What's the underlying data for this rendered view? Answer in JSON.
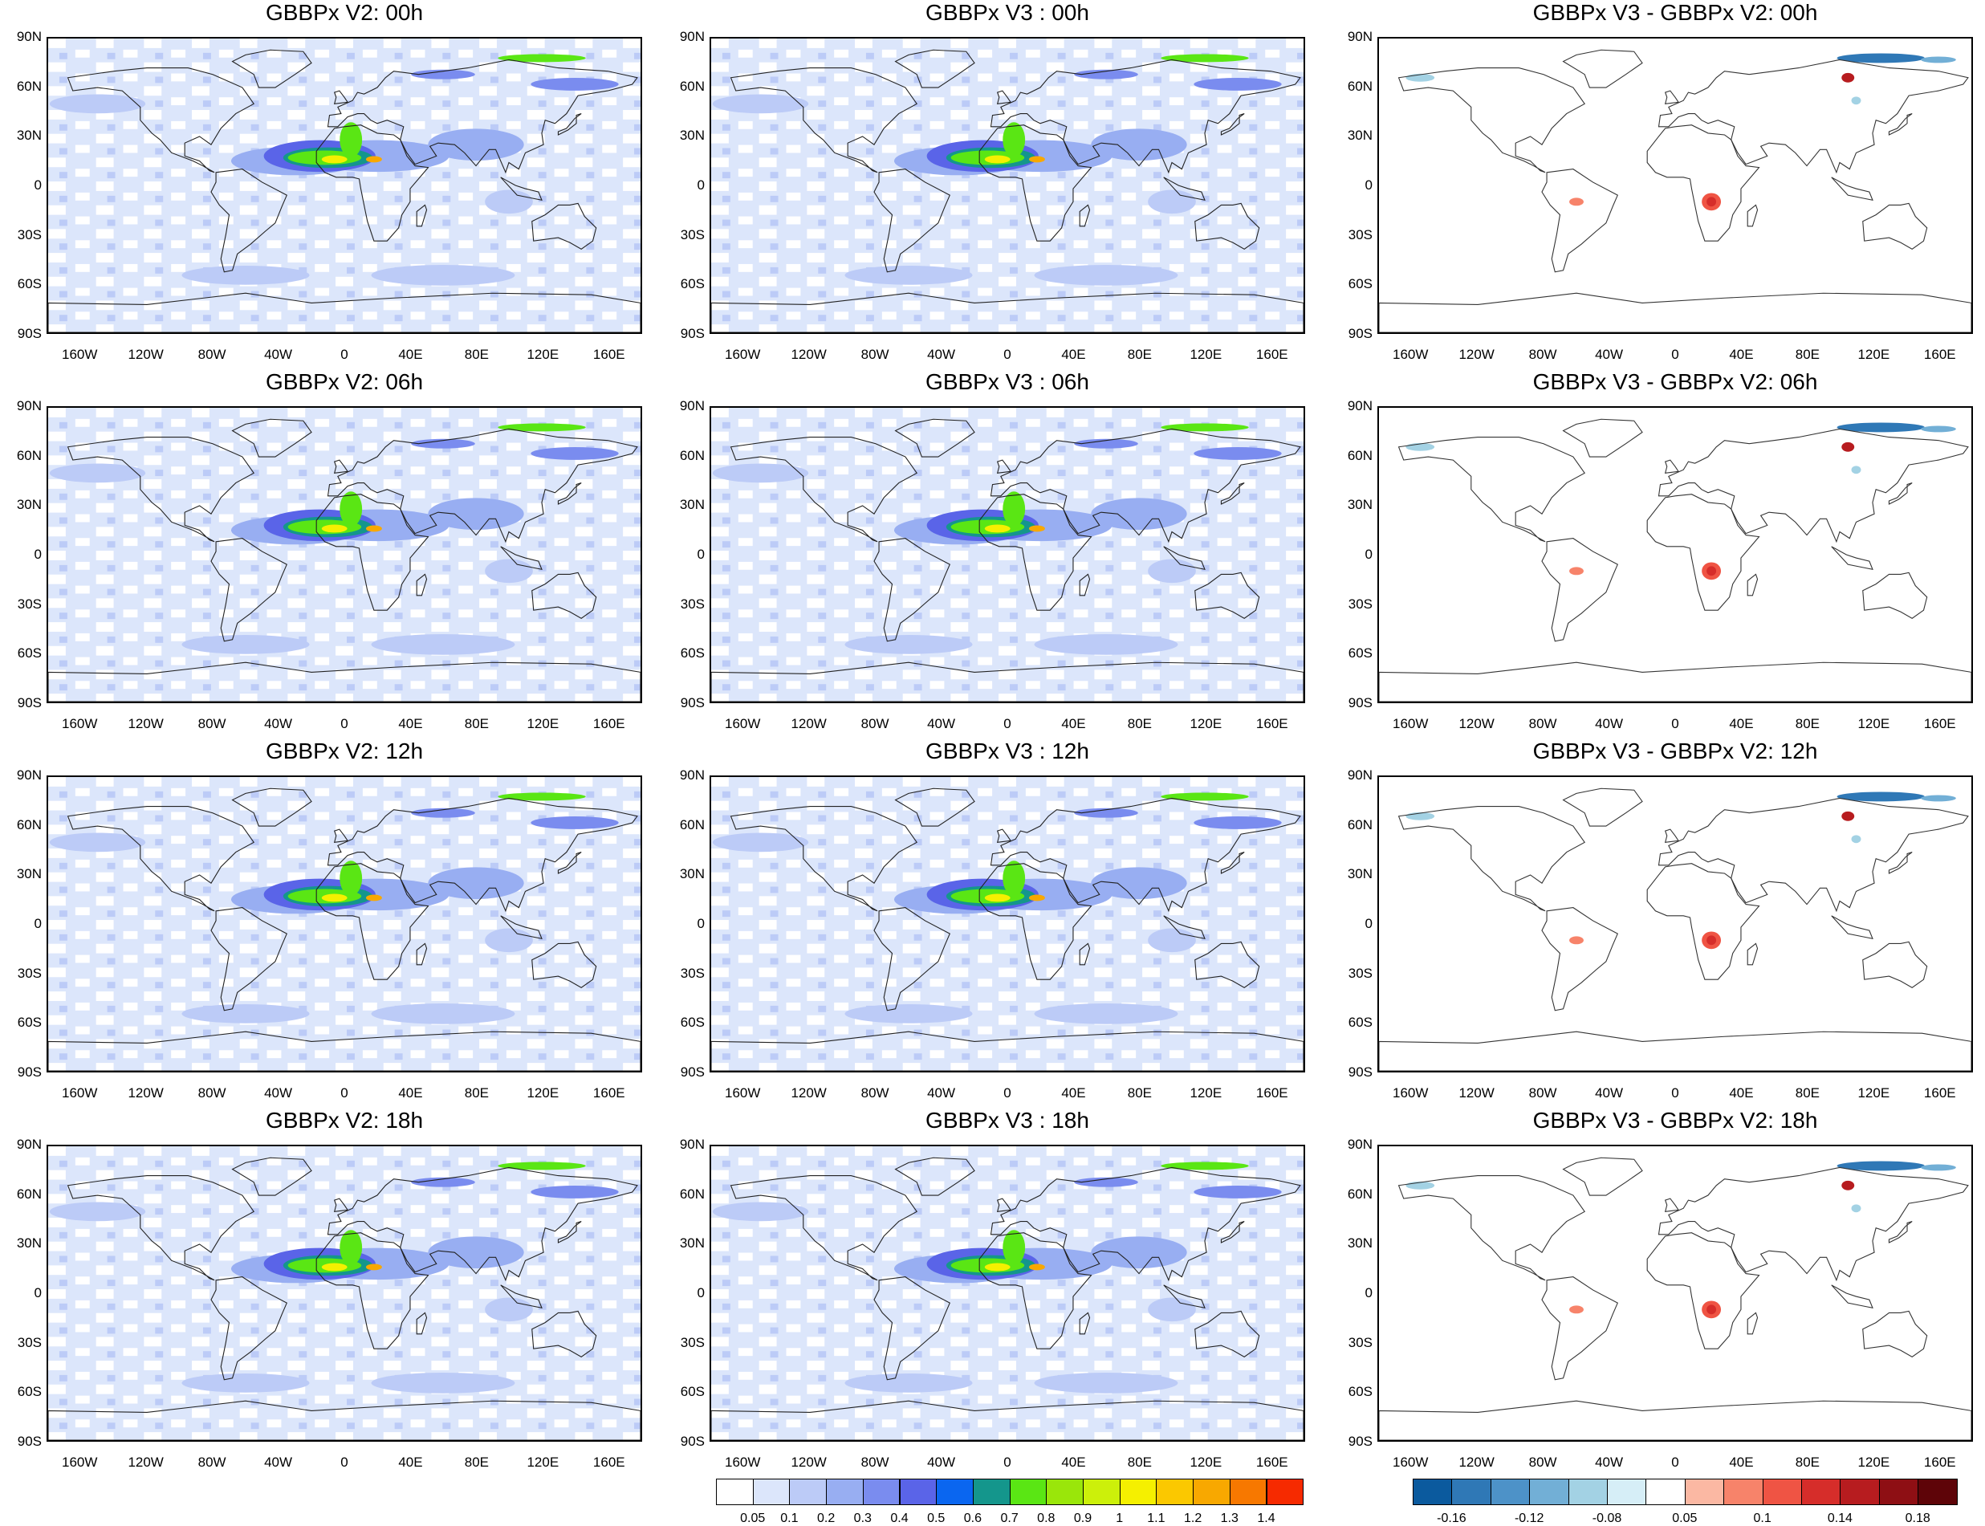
{
  "panels": [
    {
      "row": 0,
      "col": 0,
      "title": "GBBPx V2: 00h",
      "kind": "field"
    },
    {
      "row": 0,
      "col": 1,
      "title": "GBBPx V3 : 00h",
      "kind": "field"
    },
    {
      "row": 0,
      "col": 2,
      "title": "GBBPx V3 - GBBPx V2: 00h",
      "kind": "diff"
    },
    {
      "row": 1,
      "col": 0,
      "title": "GBBPx V2: 06h",
      "kind": "field"
    },
    {
      "row": 1,
      "col": 1,
      "title": "GBBPx V3 : 06h",
      "kind": "field"
    },
    {
      "row": 1,
      "col": 2,
      "title": "GBBPx V3 - GBBPx V2: 06h",
      "kind": "diff"
    },
    {
      "row": 2,
      "col": 0,
      "title": "GBBPx V2: 12h",
      "kind": "field"
    },
    {
      "row": 2,
      "col": 1,
      "title": "GBBPx V3 : 12h",
      "kind": "field"
    },
    {
      "row": 2,
      "col": 2,
      "title": "GBBPx V3 - GBBPx V2: 12h",
      "kind": "diff"
    },
    {
      "row": 3,
      "col": 0,
      "title": "GBBPx V2: 18h",
      "kind": "field"
    },
    {
      "row": 3,
      "col": 1,
      "title": "GBBPx V3 : 18h",
      "kind": "field"
    },
    {
      "row": 3,
      "col": 2,
      "title": "GBBPx V3 - GBBPx V2: 18h",
      "kind": "diff"
    }
  ],
  "lat_ticks": [
    "90N",
    "60N",
    "30N",
    "0",
    "30S",
    "60S",
    "90S"
  ],
  "lon_ticks": [
    "160W",
    "120W",
    "80W",
    "40W",
    "0",
    "40E",
    "80E",
    "120E",
    "160E"
  ],
  "colorbar_field": {
    "colors": [
      "#ffffff",
      "#dce6fb",
      "#bccbf7",
      "#98aef2",
      "#7a8cef",
      "#5a64e8",
      "#0a66f0",
      "#14968c",
      "#5ae614",
      "#9ae60a",
      "#ccf00a",
      "#f5f000",
      "#fbc800",
      "#f8a800",
      "#f77800",
      "#f62a00"
    ],
    "labels": [
      "0.05",
      "0.1",
      "0.2",
      "0.3",
      "0.4",
      "0.5",
      "0.6",
      "0.7",
      "0.8",
      "0.9",
      "1",
      "1.1",
      "1.2",
      "1.3",
      "1.4"
    ]
  },
  "colorbar_diff": {
    "colors": [
      "#0b5a9e",
      "#2f78b6",
      "#4d92c8",
      "#72afd6",
      "#a3d2e4",
      "#d6eef7",
      "#ffffff",
      "#fbb8a3",
      "#f7836a",
      "#ef5444",
      "#d62d2a",
      "#b71c1f",
      "#8e0f14",
      "#5e0408"
    ],
    "labels": [
      "-0.16",
      "",
      "-0.12",
      "",
      "-0.08",
      "",
      "0.05",
      "",
      "0.1",
      "",
      "0.14",
      "",
      "0.18"
    ]
  }
}
